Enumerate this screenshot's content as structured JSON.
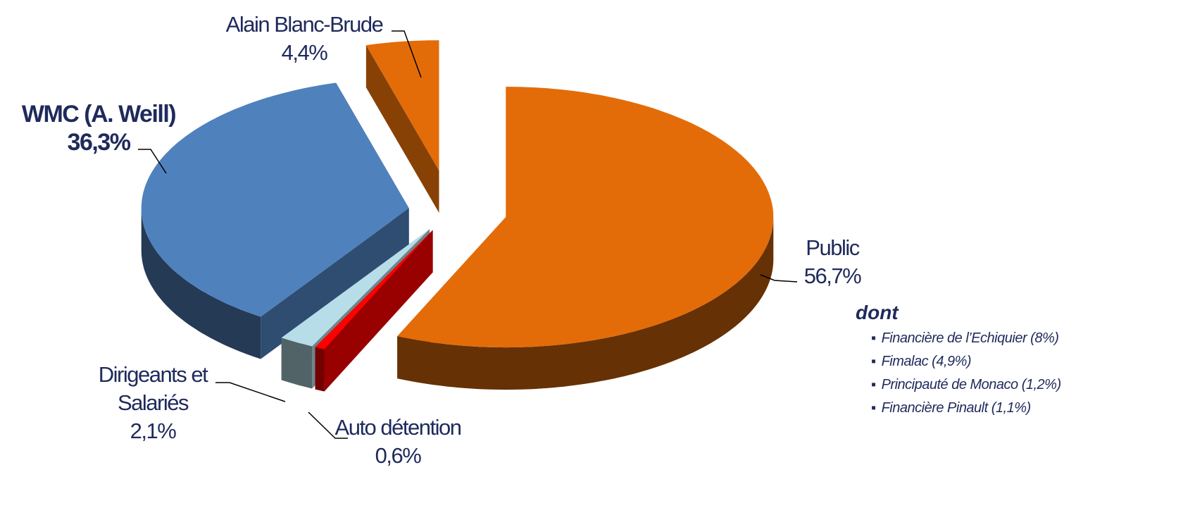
{
  "chart_data": {
    "type": "pie3d",
    "categories": [
      "Public",
      "Auto détention",
      "Dirigeants et Salariés",
      "WMC (A. Weill)",
      "Alain Blanc-Brude"
    ],
    "values": [
      56.7,
      0.6,
      2.1,
      36.3,
      4.4
    ],
    "value_labels": [
      "56,7%",
      "0,6%",
      "2,1%",
      "36,3%",
      "4,4%"
    ],
    "colors": [
      "#e36c09",
      "#ff0000",
      "#b7dde8",
      "#4f81bd",
      "#e36c09"
    ],
    "note": {
      "title": "dont",
      "items": [
        "Financière de l’Echiquier (8%)",
        "Fimalac (4,9%)",
        "Principauté de Monaco (1,2%)",
        "Financière Pinault (1,1%)"
      ]
    }
  }
}
